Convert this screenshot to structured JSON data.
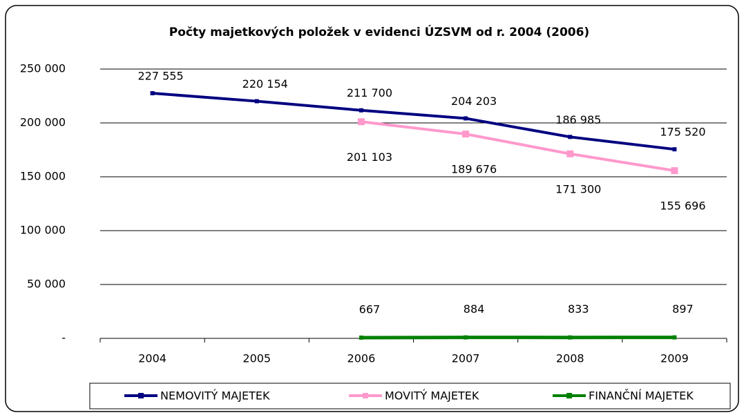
{
  "chart_data": {
    "type": "line",
    "title": "Počty majetkových položek v evidenci ÚZSVM od r. 2004 (2006)",
    "categories": [
      "2004",
      "2005",
      "2006",
      "2007",
      "2008",
      "2009"
    ],
    "series": [
      {
        "name": "NEMOVITÝ MAJETEK",
        "color": "#000080",
        "values": [
          227555,
          220154,
          211700,
          204203,
          186985,
          175520
        ],
        "value_labels": [
          "227 555",
          "220 154",
          "211 700",
          "204 203",
          "186 985",
          "175 520"
        ]
      },
      {
        "name": "MOVITÝ MAJETEK",
        "color": "#ff99cc",
        "values": [
          null,
          null,
          201103,
          189676,
          171300,
          155696
        ],
        "value_labels": [
          null,
          null,
          "201 103",
          "189 676",
          "171 300",
          "155 696"
        ]
      },
      {
        "name": "FINANČNÍ MAJETEK",
        "color": "#008000",
        "values": [
          null,
          null,
          667,
          884,
          833,
          897
        ]
      }
    ],
    "ylim": [
      0,
      250000
    ],
    "yticks": [
      {
        "value": 0,
        "label": "-"
      },
      {
        "value": 50000,
        "label": "50 000"
      },
      {
        "value": 100000,
        "label": "100 000"
      },
      {
        "value": 150000,
        "label": "150 000"
      },
      {
        "value": 200000,
        "label": "200 000"
      },
      {
        "value": 250000,
        "label": "250 000"
      }
    ],
    "grid": true,
    "legend": "bottom"
  }
}
